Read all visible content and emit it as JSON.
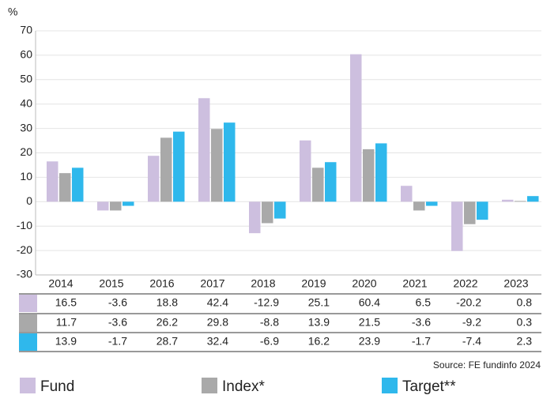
{
  "chart_data": {
    "type": "bar",
    "y_unit": "%",
    "categories": [
      "2014",
      "2015",
      "2016",
      "2017",
      "2018",
      "2019",
      "2020",
      "2021",
      "2022",
      "2023"
    ],
    "series": [
      {
        "name": "Fund",
        "color": "#cdbfdf",
        "values": [
          16.5,
          -3.6,
          18.8,
          42.4,
          -12.9,
          25.1,
          60.4,
          6.5,
          -20.2,
          0.8
        ]
      },
      {
        "name": "Index*",
        "color": "#a9a9a9",
        "values": [
          11.7,
          -3.6,
          26.2,
          29.8,
          -8.8,
          13.9,
          21.5,
          -3.6,
          -9.2,
          0.3
        ]
      },
      {
        "name": "Target**",
        "color": "#2fb8ec",
        "values": [
          13.9,
          -1.7,
          28.7,
          32.4,
          -6.9,
          16.2,
          23.9,
          -1.7,
          -7.4,
          2.3
        ]
      }
    ],
    "ylim": [
      -30,
      70
    ],
    "yticks": [
      -30,
      -20,
      -10,
      0,
      10,
      20,
      30,
      40,
      50,
      60,
      70
    ],
    "grid": true,
    "source": "Source: FE fundinfo 2024"
  }
}
